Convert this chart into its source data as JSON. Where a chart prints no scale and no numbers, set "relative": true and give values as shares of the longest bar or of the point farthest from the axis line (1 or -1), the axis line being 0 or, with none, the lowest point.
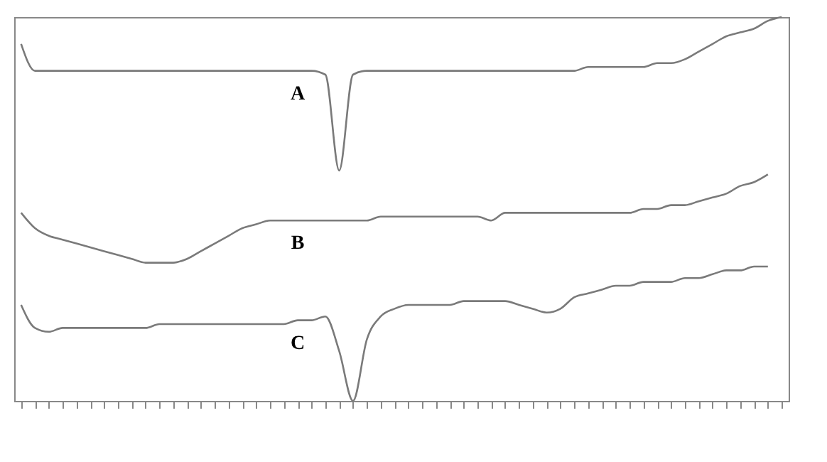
{
  "chart_data": {
    "type": "line",
    "relative": true,
    "categories": [
      null,
      null,
      null,
      null,
      null,
      null,
      null,
      null,
      null,
      null,
      null,
      null,
      null,
      null,
      null,
      null,
      null,
      null,
      null,
      null,
      null,
      null,
      null,
      null,
      null,
      null,
      null,
      null,
      null,
      null,
      null,
      null,
      null,
      null,
      null,
      null,
      null,
      null,
      null,
      null,
      null,
      null,
      null,
      null,
      null,
      null,
      null,
      null,
      null,
      null,
      null,
      null,
      null,
      null,
      null,
      null
    ],
    "series": [
      {
        "name": "A",
        "color": "#7a7a7a",
        "values": [
          0.93,
          0.86,
          0.86,
          0.86,
          0.86,
          0.86,
          0.86,
          0.86,
          0.86,
          0.86,
          0.86,
          0.86,
          0.86,
          0.86,
          0.86,
          0.86,
          0.86,
          0.86,
          0.86,
          0.86,
          0.86,
          0.86,
          0.85,
          0.6,
          0.85,
          0.86,
          0.86,
          0.86,
          0.86,
          0.86,
          0.86,
          0.86,
          0.86,
          0.86,
          0.86,
          0.86,
          0.86,
          0.86,
          0.86,
          0.86,
          0.86,
          0.87,
          0.87,
          0.87,
          0.87,
          0.87,
          0.88,
          0.88,
          0.89,
          0.91,
          0.93,
          0.95,
          0.96,
          0.97,
          0.99,
          1.0
        ]
      },
      {
        "name": "B",
        "color": "#7a7a7a",
        "values": [
          0.49,
          0.45,
          0.43,
          0.42,
          0.41,
          0.4,
          0.39,
          0.38,
          0.37,
          0.36,
          0.36,
          0.36,
          0.37,
          0.39,
          0.41,
          0.43,
          0.45,
          0.46,
          0.47,
          0.47,
          0.47,
          0.47,
          0.47,
          0.47,
          0.47,
          0.47,
          0.48,
          0.48,
          0.48,
          0.48,
          0.48,
          0.48,
          0.48,
          0.48,
          0.47,
          0.49,
          0.49,
          0.49,
          0.49,
          0.49,
          0.49,
          0.49,
          0.49,
          0.49,
          0.49,
          0.5,
          0.5,
          0.51,
          0.51,
          0.52,
          0.53,
          0.54,
          0.56,
          0.57,
          0.59,
          null
        ]
      },
      {
        "name": "C",
        "color": "#7a7a7a",
        "values": [
          0.25,
          0.19,
          0.18,
          0.19,
          0.19,
          0.19,
          0.19,
          0.19,
          0.19,
          0.19,
          0.2,
          0.2,
          0.2,
          0.2,
          0.2,
          0.2,
          0.2,
          0.2,
          0.2,
          0.2,
          0.21,
          0.21,
          0.22,
          0.13,
          0.0,
          0.16,
          0.22,
          0.24,
          0.25,
          0.25,
          0.25,
          0.25,
          0.26,
          0.26,
          0.26,
          0.26,
          0.25,
          0.24,
          0.23,
          0.24,
          0.27,
          0.28,
          0.29,
          0.3,
          0.3,
          0.31,
          0.31,
          0.31,
          0.32,
          0.32,
          0.33,
          0.34,
          0.34,
          0.35,
          0.35,
          null
        ]
      }
    ]
  }
}
